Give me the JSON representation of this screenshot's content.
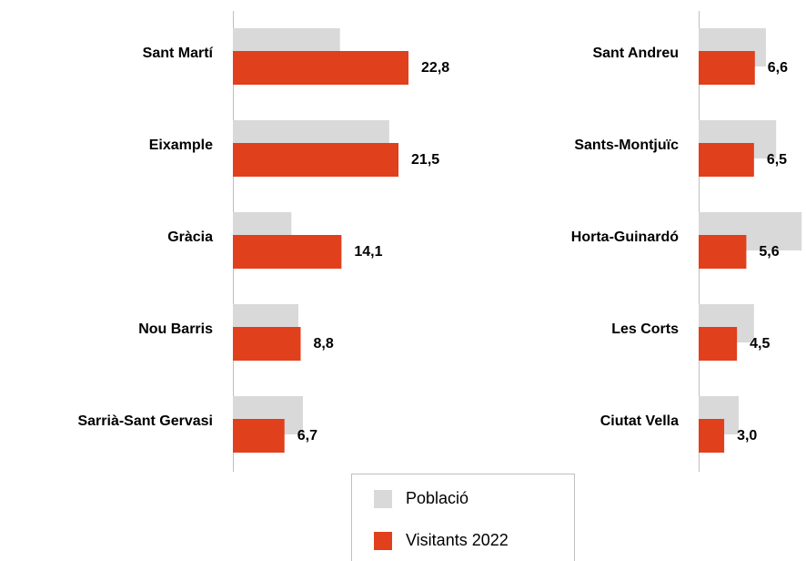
{
  "chart_data": [
    {
      "type": "hbar",
      "categories": [
        "Sant Martí",
        "Eixample",
        "Gràcia",
        "Nou Barris",
        "Sarrià-Sant Gervasi"
      ],
      "xlim": [
        0,
        30
      ],
      "legend": "bottom",
      "series": [
        {
          "name": "Població",
          "color": "#d9d9d9",
          "values": [
            13.9,
            20.3,
            7.6,
            8.5,
            9.1
          ]
        },
        {
          "name": "Visitants 2022",
          "color": "#e0401c",
          "values": [
            22.8,
            21.5,
            14.1,
            8.8,
            6.7
          ],
          "value_labels": [
            "22,8",
            "21,5",
            "14,1",
            "8,8",
            "6,7"
          ]
        }
      ]
    },
    {
      "type": "hbar",
      "categories": [
        "Sant Andreu",
        "Sants-Montjuïc",
        "Horta-Guinardó",
        "Les Corts",
        "Ciutat Vella"
      ],
      "xlim": [
        0,
        12.5
      ],
      "series": [
        {
          "name": "Població",
          "color": "#d9d9d9",
          "values": [
            7.9,
            9.1,
            12.1,
            6.5,
            4.7
          ]
        },
        {
          "name": "Visitants 2022",
          "color": "#e0401c",
          "values": [
            6.6,
            6.5,
            5.6,
            4.5,
            3.0
          ],
          "value_labels": [
            "6,6",
            "6,5",
            "5,6",
            "4,5",
            "3,0"
          ]
        }
      ]
    }
  ]
}
